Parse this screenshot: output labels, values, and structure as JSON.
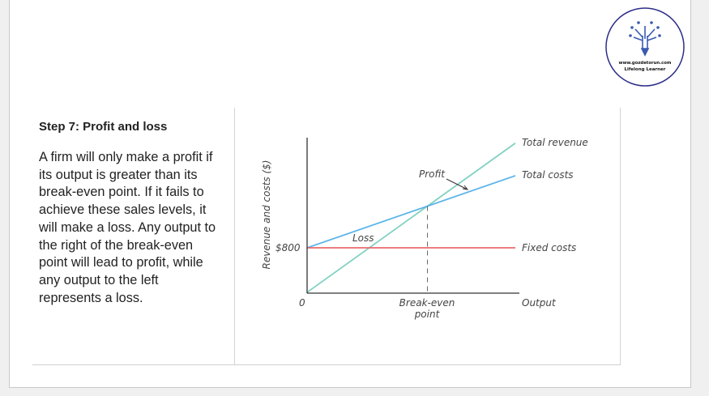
{
  "logo": {
    "url_text": "www.gozdetorun.com",
    "tagline": "Lifelong Learner",
    "color": "#2e2e8a"
  },
  "text_panel": {
    "heading": "Step 7: Profit and loss",
    "body_lines": [
      "A firm will only make a profit if",
      "its output is greater than its",
      "break-even point. If it fails to",
      "achieve these sales levels, it",
      "will make a loss. Any output to",
      "the right of the break-even",
      "point will lead to profit, while",
      "any output to the left",
      "represents a loss."
    ]
  },
  "chart_data": {
    "type": "line",
    "xlabel": "Output",
    "ylabel": "Revenue and costs ($)",
    "x_ticks": [
      {
        "x": 0,
        "label": "0"
      },
      {
        "x": 0.578,
        "label": "Break-even point"
      }
    ],
    "y_ticks": [
      {
        "y": 800,
        "label": "$800"
      }
    ],
    "series": [
      {
        "name": "Total revenue",
        "color": "#7fd1c0",
        "points": [
          [
            0,
            0
          ],
          [
            1,
            2680
          ]
        ]
      },
      {
        "name": "Total costs",
        "color": "#5bb4ea",
        "points": [
          [
            0,
            800
          ],
          [
            1,
            2095
          ]
        ]
      },
      {
        "name": "Fixed costs",
        "color": "#ea6a6e",
        "points": [
          [
            0,
            800
          ],
          [
            1,
            800
          ]
        ]
      }
    ],
    "break_even": {
      "x": 0.578,
      "y": 1549
    },
    "annotations": [
      "Profit",
      "Loss"
    ],
    "xlim": [
      0,
      1.02
    ],
    "ylim": [
      0,
      2750
    ],
    "grid": false
  }
}
